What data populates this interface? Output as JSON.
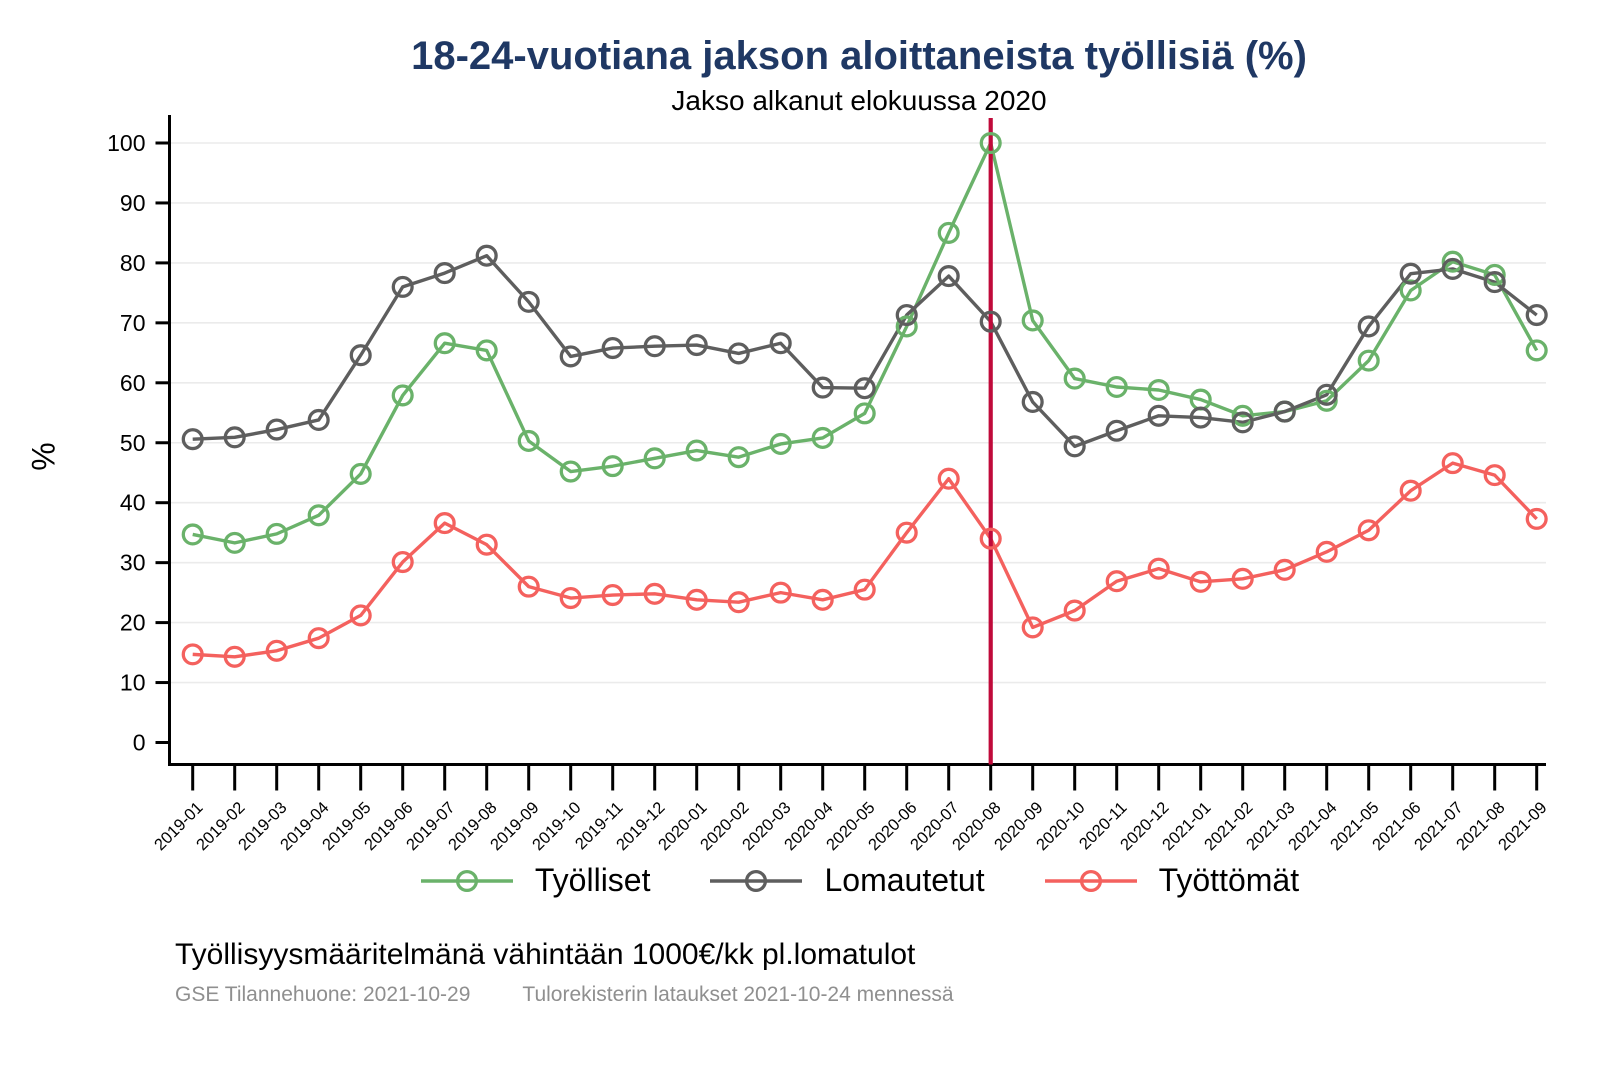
{
  "page": {
    "title": "18-24-vuotiana jakson aloittaneista työllisiä (%)",
    "subtitle": "Jakso alkanut elokuussa 2020",
    "caption": "Työllisyysmääritelmänä vähintään 1000€/kk pl.lomatulot",
    "footnotes": {
      "left": "GSE Tilannehuone: 2021-10-29",
      "right": "Tulorekisterin lataukset 2021-10-24 mennessä"
    }
  },
  "colors": {
    "title": "#1f3864",
    "subtitle": "#000000",
    "axis": "#000000",
    "grid": "#ebebeb",
    "tick_label": "#000000",
    "reference_line": "#c00a3a",
    "footnote": "#8f8f8f",
    "background": "#ffffff"
  },
  "chart_data": {
    "type": "line",
    "title": "18-24-vuotiana jakson aloittaneista työllisiä (%)",
    "subtitle": "Jakso alkanut elokuussa 2020",
    "xlabel": "",
    "ylabel": "%",
    "ylim": [
      0,
      100
    ],
    "ytick_step": 10,
    "grid": true,
    "legend_position": "bottom",
    "marker": "hollow-circle",
    "reference_line": {
      "at_category": "2020-08",
      "color": "#c00a3a"
    },
    "categories": [
      "2019-01",
      "2019-02",
      "2019-03",
      "2019-04",
      "2019-05",
      "2019-06",
      "2019-07",
      "2019-08",
      "2019-09",
      "2019-10",
      "2019-11",
      "2019-12",
      "2020-01",
      "2020-02",
      "2020-03",
      "2020-04",
      "2020-05",
      "2020-06",
      "2020-07",
      "2020-08",
      "2020-09",
      "2020-10",
      "2020-11",
      "2020-12",
      "2021-01",
      "2021-02",
      "2021-03",
      "2021-04",
      "2021-05",
      "2021-06",
      "2021-07",
      "2021-08",
      "2021-09"
    ],
    "series": [
      {
        "name": "Työlliset",
        "color": "#6ab26a",
        "values": [
          34.7,
          33.3,
          34.8,
          37.9,
          44.8,
          57.9,
          66.6,
          65.4,
          50.3,
          45.2,
          46.1,
          47.4,
          48.7,
          47.6,
          49.8,
          50.8,
          54.9,
          69.4,
          85.0,
          100,
          70.4,
          60.7,
          59.3,
          58.8,
          57.2,
          54.5,
          55.2,
          57.0,
          63.7,
          75.4,
          80.2,
          78.0,
          65.4
        ]
      },
      {
        "name": "Lomautetut",
        "color": "#5e5e5e",
        "values": [
          50.6,
          50.9,
          52.2,
          53.8,
          64.6,
          76.0,
          78.3,
          81.2,
          73.5,
          64.4,
          65.8,
          66.1,
          66.3,
          64.9,
          66.6,
          59.2,
          59.1,
          71.3,
          77.8,
          70.2,
          56.8,
          49.4,
          52.0,
          54.5,
          54.2,
          53.4,
          55.2,
          58.0,
          69.4,
          78.2,
          79.0,
          76.8,
          71.3
        ]
      },
      {
        "name": "Työttömät",
        "color": "#f4615e",
        "values": [
          14.7,
          14.3,
          15.3,
          17.4,
          21.2,
          30.1,
          36.6,
          33.0,
          26.0,
          24.1,
          24.6,
          24.8,
          23.8,
          23.4,
          25.0,
          23.8,
          25.5,
          35.0,
          44.0,
          34.0,
          19.2,
          22.0,
          26.9,
          29.0,
          26.8,
          27.3,
          28.8,
          31.8,
          35.4,
          42.0,
          46.6,
          44.6,
          37.3
        ]
      }
    ]
  }
}
